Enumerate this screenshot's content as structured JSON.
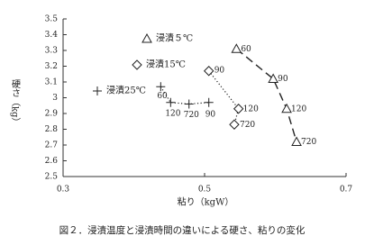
{
  "chart_data": {
    "type": "scatter",
    "x_label": "粘り（kgW）",
    "y_label": "硬さ（kg）",
    "caption": "図２．浸漬温度と浸漬時間の違いによる硬さ、粘りの変化",
    "xlim": [
      0.3,
      0.7
    ],
    "xticks": [
      0.3,
      0.5,
      0.7
    ],
    "ylim": [
      2.5,
      3.5
    ],
    "yticks": [
      3.5,
      3.4,
      3.3,
      3.2,
      3.1,
      3,
      2.9,
      2.8,
      2.7,
      2.6,
      2.5
    ],
    "series": [
      {
        "name": "浸漬５℃",
        "marker": "triangle",
        "line_style": "dashed",
        "color": "#222",
        "point_labels": [
          60,
          90,
          120,
          720
        ],
        "x": [
          0.545,
          0.597,
          0.616,
          0.63
        ],
        "values": [
          3.31,
          3.12,
          2.93,
          2.72
        ]
      },
      {
        "name": "浸漬15℃",
        "marker": "diamond",
        "line_style": "dotted",
        "color": "#222",
        "point_labels": [
          90,
          120,
          720
        ],
        "x": [
          0.506,
          0.548,
          0.542
        ],
        "values": [
          3.17,
          2.93,
          2.83
        ]
      },
      {
        "name": "浸漬25℃",
        "marker": "plus",
        "line_style": "dotted",
        "color": "#222",
        "point_labels": [
          60,
          120,
          720,
          90
        ],
        "x": [
          0.438,
          0.452,
          0.478,
          0.506
        ],
        "values": [
          3.07,
          2.97,
          2.96,
          2.97
        ]
      }
    ]
  }
}
